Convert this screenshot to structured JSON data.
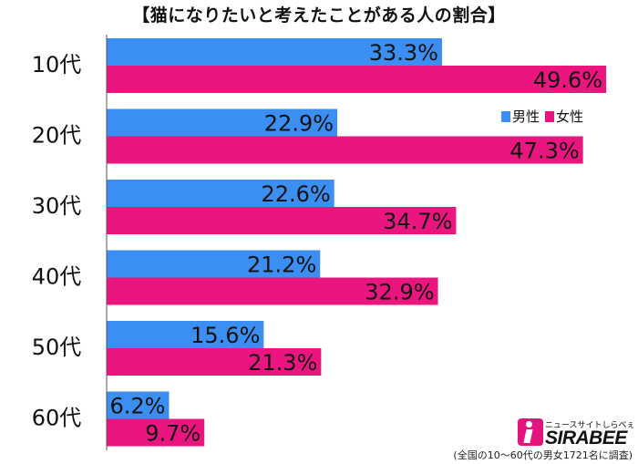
{
  "chart_data": {
    "type": "bar",
    "orientation": "horizontal",
    "title": "【猫になりたいと考えたことがある人の割合】",
    "categories": [
      "10代",
      "20代",
      "30代",
      "40代",
      "50代",
      "60代"
    ],
    "series": [
      {
        "name": "男性",
        "color": "#3b8ff2",
        "values": [
          33.3,
          22.9,
          22.6,
          21.2,
          15.6,
          6.2
        ]
      },
      {
        "name": "女性",
        "color": "#ea157f",
        "values": [
          49.6,
          47.3,
          34.7,
          32.9,
          21.3,
          9.7
        ]
      }
    ],
    "value_suffix": "%",
    "xlim": [
      0,
      50
    ],
    "legend_position": "top-right",
    "grid": false
  },
  "logo": {
    "tagline": "ニュースサイトしらべぇ",
    "brand": "SIRABEE"
  },
  "footnote": "(全国の10〜60代の男女1721名に調査)"
}
